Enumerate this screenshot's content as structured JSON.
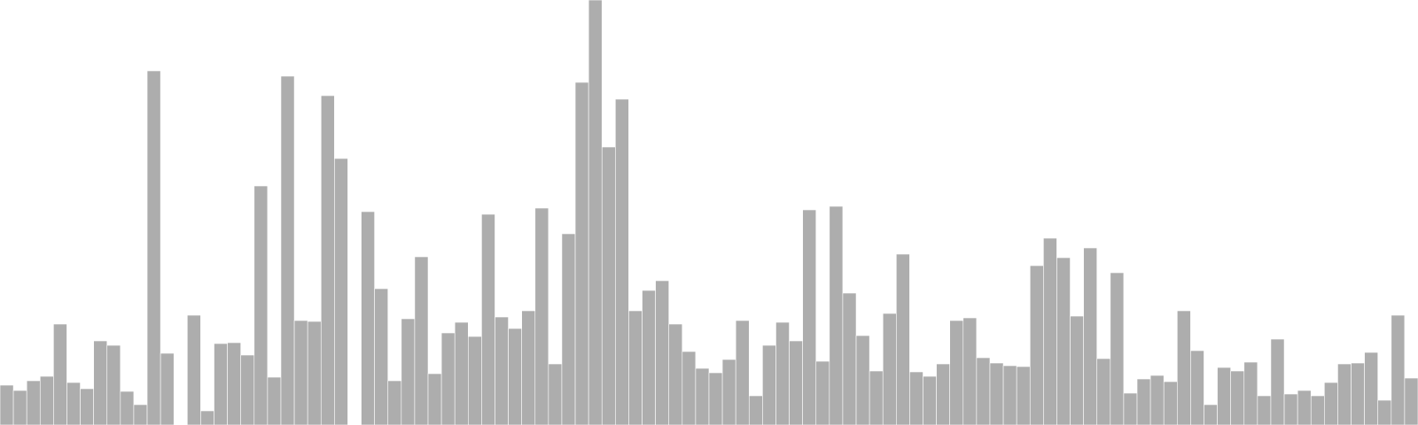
{
  "chart_data": {
    "type": "bar",
    "bar_color": "#adadad",
    "background": "#ffffff",
    "grid": false,
    "legend": "none",
    "title": "",
    "xlabel": "",
    "ylabel": "",
    "ylim": [
      0,
      480
    ],
    "values": [
      45,
      39,
      50,
      55,
      114,
      48,
      41,
      95,
      90,
      38,
      23,
      400,
      81,
      0,
      124,
      16,
      92,
      93,
      79,
      270,
      54,
      394,
      118,
      117,
      372,
      301,
      0,
      241,
      154,
      50,
      120,
      190,
      58,
      104,
      116,
      100,
      238,
      122,
      109,
      129,
      245,
      69,
      216,
      387,
      480,
      314,
      368,
      129,
      152,
      163,
      114,
      83,
      64,
      59,
      74,
      118,
      33,
      90,
      116,
      95,
      243,
      72,
      247,
      149,
      101,
      61,
      126,
      193,
      60,
      55,
      69,
      118,
      121,
      76,
      70,
      67,
      66,
      180,
      211,
      189,
      123,
      200,
      75,
      172,
      36,
      52,
      56,
      49,
      129,
      84,
      23,
      65,
      61,
      71,
      33,
      97,
      35,
      39,
      33,
      48,
      69,
      70,
      82,
      28,
      124,
      53
    ]
  }
}
